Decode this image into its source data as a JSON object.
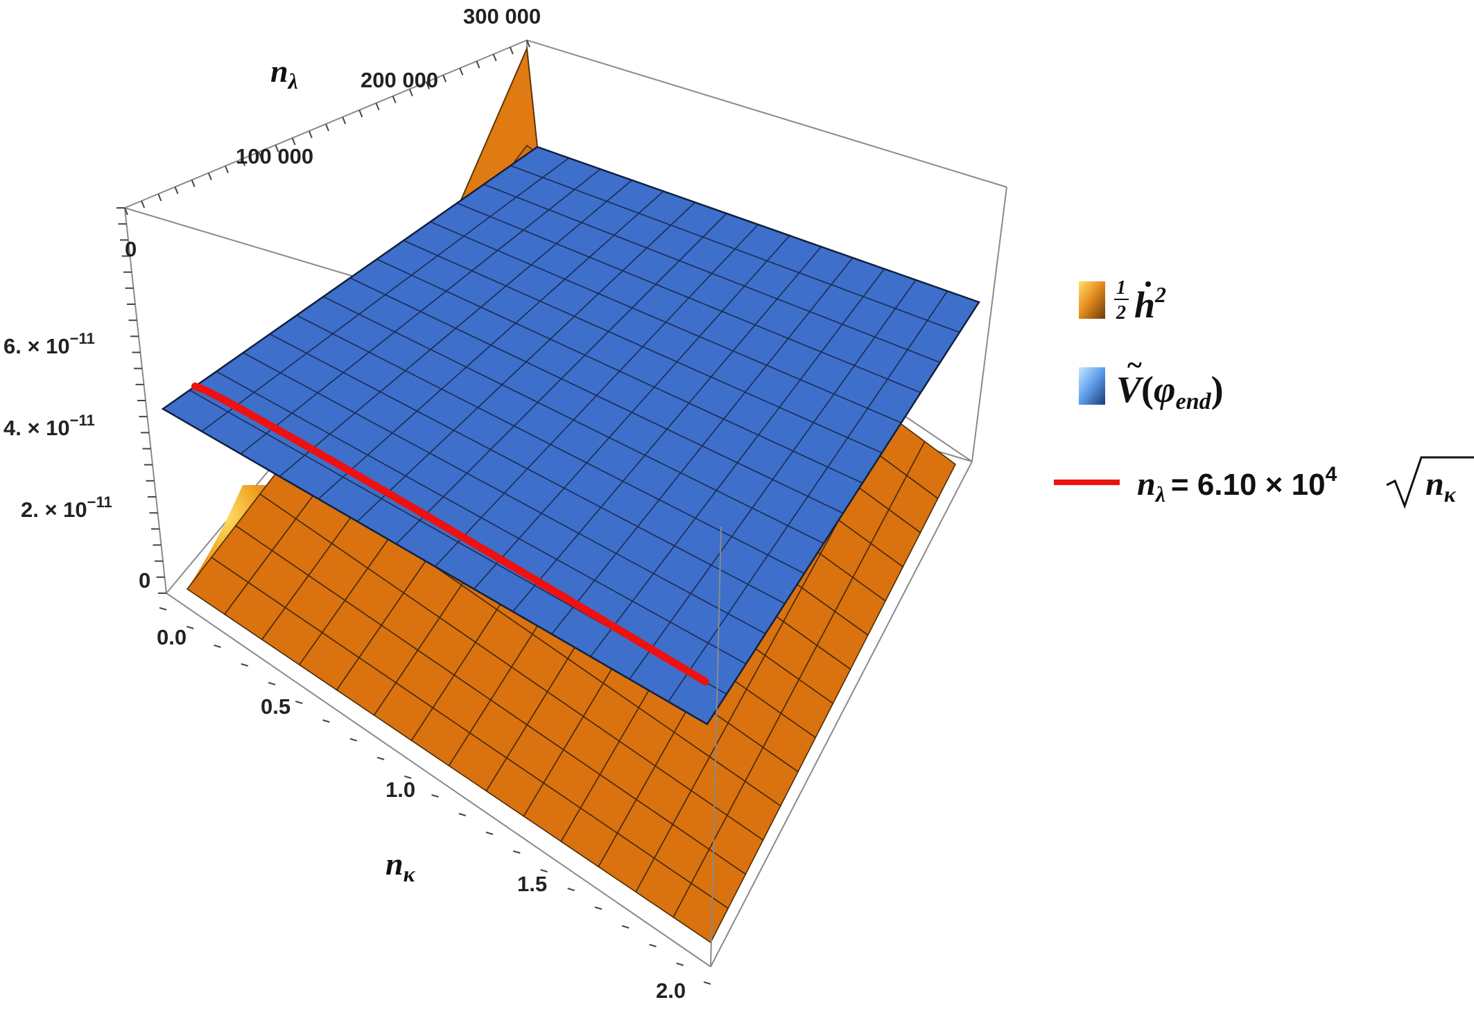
{
  "chart_data": {
    "type": "surface3d",
    "axes": {
      "x": {
        "label": "n",
        "label_sub": "κ",
        "ticks": [
          "0.0",
          "0.5",
          "1.0",
          "1.5",
          "2.0"
        ],
        "range": [
          0,
          2
        ]
      },
      "y": {
        "label": "n",
        "label_sub": "λ",
        "ticks": [
          "0",
          "100 000",
          "200 000",
          "300 000"
        ],
        "range": [
          0,
          300000
        ]
      },
      "z": {
        "ticks": [
          {
            "mant": "0",
            "exp": ""
          },
          {
            "mant": "2. × 10",
            "exp": "−11"
          },
          {
            "mant": "4. × 10",
            "exp": "−11"
          },
          {
            "mant": "6. × 10",
            "exp": "−11"
          }
        ],
        "range": [
          0,
          7e-11
        ]
      }
    },
    "series": [
      {
        "name": "½ ḣ²",
        "kind": "surface",
        "color": "#D9720F",
        "shape": "low plane rising steeply toward n_kappa = 0 and n_lambda = 300 000"
      },
      {
        "name": "Ṽ(φ_end)",
        "kind": "surface",
        "color": "#3E6FCB",
        "value_approx": 4.5e-11
      },
      {
        "name": "n_λ = 6.10 × 10^4 √n_κ",
        "kind": "curve",
        "color": "#EE1111",
        "coefficient": 61000
      }
    ],
    "legend": {
      "position": "right",
      "items": [
        {
          "swatch": "orange-gradient-swatch",
          "frac_num": "1",
          "frac_den": "2",
          "symbol": "h",
          "power": "2"
        },
        {
          "swatch": "blue-gradient-swatch",
          "symbol": "V",
          "arg": "φ",
          "arg_sub": "end"
        },
        {
          "swatch": "red-line-swatch",
          "lhs": "n",
          "lhs_sub": "λ",
          "rhs": "= 6.10 × 10",
          "rhs_exp": "4",
          "rhs_sqrt_var": "n",
          "rhs_sqrt_sub": "κ"
        }
      ]
    }
  }
}
